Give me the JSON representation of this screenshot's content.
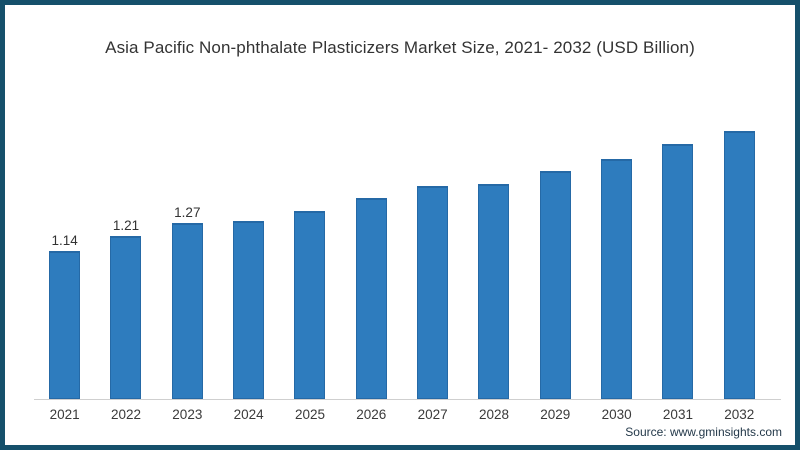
{
  "chart_data": {
    "type": "bar",
    "title": "Asia Pacific Non-phthalate Plasticizers Market Size, 2021- 2032 (USD Billion)",
    "xlabel": "",
    "ylabel": "USD Billion",
    "categories": [
      "2021",
      "2022",
      "2023",
      "2024",
      "2025",
      "2026",
      "2027",
      "2028",
      "2029",
      "2030",
      "2031",
      "2032"
    ],
    "values": [
      1.14,
      1.21,
      1.27,
      1.28,
      1.33,
      1.39,
      1.45,
      1.46,
      1.52,
      1.58,
      1.65,
      1.71
    ],
    "data_labels": [
      "1.14",
      "1.21",
      "1.27",
      "",
      "",
      "",
      "",
      "",
      "",
      "",
      "",
      ""
    ],
    "labeled_points_note": "only first three bars carry visible value labels; remaining values estimated from bar heights",
    "ylim": [
      0.43,
      1.75
    ],
    "grid": false,
    "legend_position": "none",
    "bar_color": "#2e7cbe",
    "bar_edge_color": "#2569a6"
  },
  "frame": {
    "border_color": "#15506b",
    "background": "#ffffff"
  },
  "footer": {
    "source": "Source: www.gminsights.com"
  }
}
